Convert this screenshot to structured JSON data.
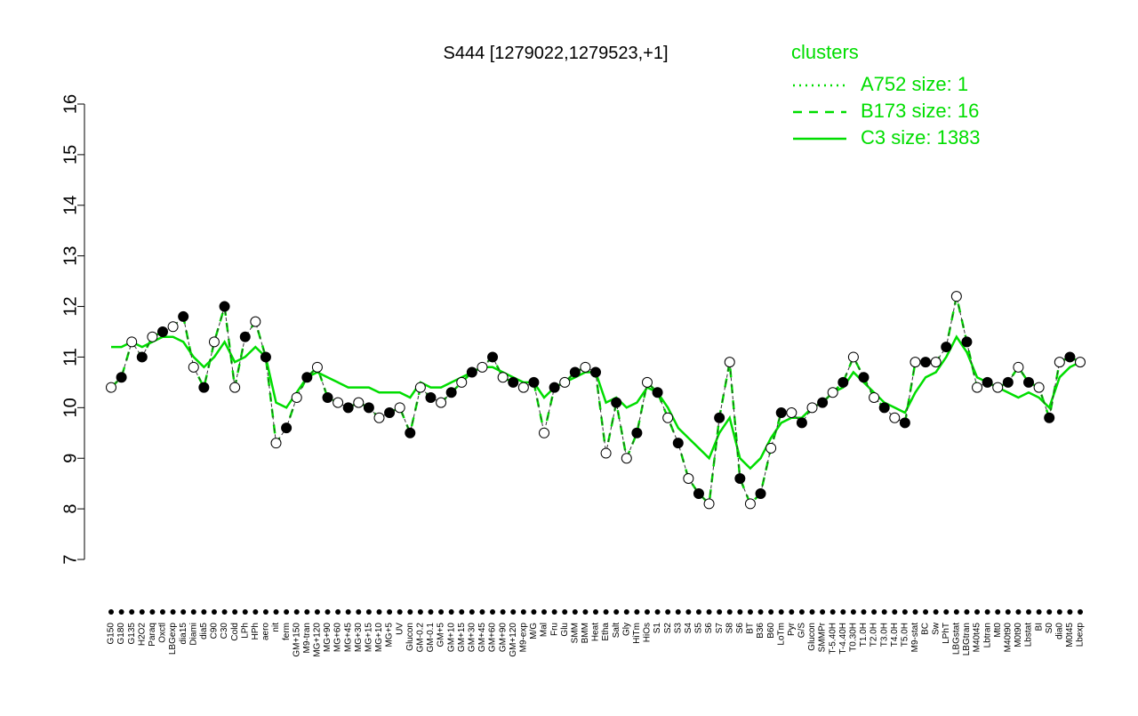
{
  "chart_data": {
    "type": "line",
    "title": "S444 [1279022,1279523,+1]",
    "legend_title": "clusters",
    "legend_color": "#00dd00",
    "categories": [
      "G150",
      "G180",
      "G135",
      "H2O2",
      "Paraq",
      "Oxctl",
      "LBGexp",
      "dia15",
      "Diami",
      "dia5",
      "C90",
      "C30",
      "Cold",
      "LPh",
      "HPh",
      "aero",
      "nit",
      "ferm",
      "GM+150",
      "M9-tran",
      "MG+120",
      "MG+90",
      "MG+60",
      "MG+45",
      "MG+30",
      "MG+15",
      "MG+10",
      "MG+5",
      "UV",
      "Glucon",
      "GM-0.2",
      "GM-0.1",
      "GM+5",
      "GM+10",
      "GM+15",
      "GM+30",
      "GM+45",
      "GM+60",
      "GM+90",
      "GM+120",
      "M9-exp",
      "M/G",
      "Mal",
      "Fru",
      "Glu",
      "SMM",
      "BMM",
      "Heat",
      "Etha",
      "Salt",
      "Gly",
      "HiTm",
      "HiOs",
      "S1",
      "S2",
      "S3",
      "S4",
      "S5",
      "S6",
      "S7",
      "S8",
      "S6",
      "BT",
      "B36",
      "B60",
      "LoTm",
      "Pyr",
      "G/S",
      "Glucon",
      "SMMPr",
      "T-5.40H",
      "T-4.40H",
      "T0.30H",
      "T1.0H",
      "T2.0H",
      "T3.0H",
      "T4.0H",
      "T5.0H",
      "M9-stat",
      "BC",
      "Sw",
      "LPhT",
      "LBGstat",
      "LBGtran",
      "M40t45",
      "Lbtran",
      "Mt0",
      "M40t90",
      "M0t90",
      "Lbstat",
      "BI",
      "S0",
      "dia0",
      "M0t45",
      "Lbexp"
    ],
    "points": [
      10.4,
      10.6,
      11.3,
      11.0,
      11.4,
      11.5,
      11.6,
      11.8,
      10.8,
      10.4,
      11.3,
      12.0,
      10.4,
      11.4,
      11.7,
      11.0,
      9.3,
      9.6,
      10.2,
      10.6,
      10.8,
      10.2,
      10.1,
      10.0,
      10.1,
      10.0,
      9.8,
      9.9,
      10.0,
      9.5,
      10.4,
      10.2,
      10.1,
      10.3,
      10.5,
      10.7,
      10.8,
      11.0,
      10.6,
      10.5,
      10.4,
      10.5,
      9.5,
      10.4,
      10.5,
      10.7,
      10.8,
      10.7,
      9.1,
      10.1,
      9.0,
      9.5,
      10.5,
      10.3,
      9.8,
      9.3,
      8.6,
      8.3,
      8.1,
      9.8,
      10.9,
      8.6,
      8.1,
      8.3,
      9.2,
      9.9,
      9.9,
      9.7,
      10.0,
      10.1,
      10.3,
      10.5,
      11.0,
      10.6,
      10.2,
      10.0,
      9.8,
      9.7,
      10.9,
      10.9,
      10.9,
      11.2,
      12.2,
      11.3,
      10.4,
      10.5,
      10.4,
      10.5,
      10.8,
      10.5,
      10.4,
      9.8,
      10.9,
      11.0,
      10.9
    ],
    "series": [
      {
        "name": "A752 size: 1",
        "color": "#00dd00",
        "dash": "dotted"
      },
      {
        "name": "B173 size: 16",
        "color": "#00dd00",
        "dash": "dashed",
        "values": [
          10.4,
          10.6,
          11.3,
          11.0,
          11.4,
          11.5,
          11.6,
          11.8,
          10.8,
          10.4,
          11.3,
          12.0,
          10.4,
          11.4,
          11.7,
          11.0,
          9.3,
          9.6,
          10.2,
          10.6,
          10.8,
          10.2,
          10.1,
          10.0,
          10.1,
          10.0,
          9.8,
          9.9,
          10.0,
          9.5,
          10.4,
          10.2,
          10.1,
          10.3,
          10.5,
          10.7,
          10.8,
          11.0,
          10.6,
          10.5,
          10.4,
          10.5,
          9.5,
          10.4,
          10.5,
          10.7,
          10.8,
          10.7,
          9.1,
          10.1,
          9.0,
          9.5,
          10.5,
          10.3,
          9.8,
          9.3,
          8.6,
          8.3,
          8.1,
          9.8,
          10.9,
          8.6,
          8.1,
          8.3,
          9.2,
          9.9,
          9.9,
          9.7,
          10.0,
          10.1,
          10.3,
          10.5,
          11.0,
          10.6,
          10.2,
          10.0,
          9.8,
          9.7,
          10.9,
          10.9,
          10.9,
          11.2,
          12.2,
          11.3,
          10.4,
          10.5,
          10.4,
          10.5,
          10.8,
          10.5,
          10.4,
          9.8,
          10.9,
          11.0,
          10.9
        ]
      },
      {
        "name": "C3 size: 1383",
        "color": "#00dd00",
        "dash": "solid",
        "values": [
          11.2,
          11.2,
          11.3,
          11.2,
          11.3,
          11.4,
          11.4,
          11.3,
          11.0,
          10.8,
          11.0,
          11.3,
          10.9,
          11.0,
          11.2,
          11.0,
          10.1,
          10.0,
          10.3,
          10.6,
          10.7,
          10.6,
          10.5,
          10.4,
          10.4,
          10.4,
          10.3,
          10.3,
          10.3,
          10.2,
          10.5,
          10.4,
          10.4,
          10.5,
          10.6,
          10.7,
          10.8,
          10.8,
          10.7,
          10.6,
          10.5,
          10.5,
          10.2,
          10.4,
          10.5,
          10.6,
          10.7,
          10.7,
          10.1,
          10.2,
          10.0,
          10.1,
          10.4,
          10.3,
          10.0,
          9.6,
          9.4,
          9.2,
          9.0,
          9.5,
          9.8,
          9.0,
          8.8,
          9.0,
          9.4,
          9.7,
          9.8,
          9.8,
          10.0,
          10.1,
          10.3,
          10.4,
          10.7,
          10.5,
          10.3,
          10.1,
          10.0,
          9.9,
          10.3,
          10.6,
          10.7,
          11.0,
          11.4,
          11.1,
          10.6,
          10.5,
          10.4,
          10.3,
          10.2,
          10.3,
          10.2,
          10.0,
          10.6,
          10.8,
          10.9
        ]
      }
    ],
    "ylim": [
      7,
      16
    ],
    "yticks": [
      7,
      8,
      9,
      10,
      11,
      12,
      13,
      14,
      15,
      16
    ]
  }
}
